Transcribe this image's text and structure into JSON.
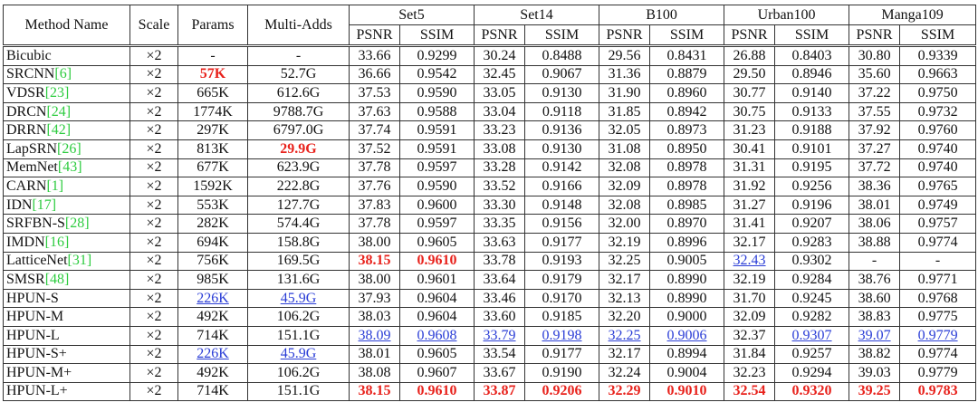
{
  "table": {
    "header": {
      "fixed": [
        "Method Name",
        "Scale",
        "Params",
        "Multi-Adds"
      ],
      "datasets": [
        "Set5",
        "Set14",
        "B100",
        "Urban100",
        "Manga109"
      ],
      "metrics": [
        "PSNR",
        "SSIM"
      ]
    },
    "groups": [
      [
        {
          "method": "Bicubic",
          "cells": [
            "×2",
            "-",
            "-",
            "33.66",
            "0.9299",
            "30.24",
            "0.8488",
            "29.56",
            "0.8431",
            "26.88",
            "0.8403",
            "30.80",
            "0.9339"
          ]
        },
        {
          "method": "SRCNN",
          "ref": "[6]",
          "cells": [
            "×2",
            "57K",
            "52.7G",
            "36.66",
            "0.9542",
            "32.45",
            "0.9067",
            "31.36",
            "0.8879",
            "29.50",
            "0.8946",
            "35.60",
            "0.9663"
          ],
          "red": [
            1
          ]
        },
        {
          "method": "VDSR",
          "ref": "[23]",
          "cells": [
            "×2",
            "665K",
            "612.6G",
            "37.53",
            "0.9590",
            "33.05",
            "0.9130",
            "31.90",
            "0.8960",
            "30.77",
            "0.9140",
            "37.22",
            "0.9750"
          ]
        },
        {
          "method": "DRCN",
          "ref": "[24]",
          "cells": [
            "×2",
            "1774K",
            "9788.7G",
            "37.63",
            "0.9588",
            "33.04",
            "0.9118",
            "31.85",
            "0.8942",
            "30.75",
            "0.9133",
            "37.55",
            "0.9732"
          ]
        },
        {
          "method": "DRRN",
          "ref": "[42]",
          "cells": [
            "×2",
            "297K",
            "6797.0G",
            "37.74",
            "0.9591",
            "33.23",
            "0.9136",
            "32.05",
            "0.8973",
            "31.23",
            "0.9188",
            "37.92",
            "0.9760"
          ]
        },
        {
          "method": "LapSRN",
          "ref": "[26]",
          "cells": [
            "×2",
            "813K",
            "29.9G",
            "37.52",
            "0.9591",
            "33.08",
            "0.9130",
            "31.08",
            "0.8950",
            "30.41",
            "0.9101",
            "37.27",
            "0.9740"
          ],
          "red": [
            2
          ]
        },
        {
          "method": "MemNet",
          "ref": "[43]",
          "cells": [
            "×2",
            "677K",
            "623.9G",
            "37.78",
            "0.9597",
            "33.28",
            "0.9142",
            "32.08",
            "0.8978",
            "31.31",
            "0.9195",
            "37.72",
            "0.9740"
          ]
        },
        {
          "method": "CARN",
          "ref": "[1]",
          "cells": [
            "×2",
            "1592K",
            "222.8G",
            "37.76",
            "0.9590",
            "33.52",
            "0.9166",
            "32.09",
            "0.8978",
            "31.92",
            "0.9256",
            "38.36",
            "0.9765"
          ]
        },
        {
          "method": "IDN",
          "ref": "[17]",
          "cells": [
            "×2",
            "553K",
            "127.7G",
            "37.83",
            "0.9600",
            "33.30",
            "0.9148",
            "32.08",
            "0.8985",
            "31.27",
            "0.9196",
            "38.01",
            "0.9749"
          ]
        },
        {
          "method": "SRFBN-S",
          "ref": "[28]",
          "cells": [
            "×2",
            "282K",
            "574.4G",
            "37.78",
            "0.9597",
            "33.35",
            "0.9156",
            "32.00",
            "0.8970",
            "31.41",
            "0.9207",
            "38.06",
            "0.9757"
          ]
        },
        {
          "method": "IMDN",
          "ref": "[16]",
          "cells": [
            "×2",
            "694K",
            "158.8G",
            "38.00",
            "0.9605",
            "33.63",
            "0.9177",
            "32.19",
            "0.8996",
            "32.17",
            "0.9283",
            "38.88",
            "0.9774"
          ]
        },
        {
          "method": "LatticeNet",
          "ref": "[31]",
          "cells": [
            "×2",
            "756K",
            "169.5G",
            "38.15",
            "0.9610",
            "33.78",
            "0.9193",
            "32.25",
            "0.9005",
            "32.43",
            "0.9302",
            "-",
            "-"
          ],
          "red": [
            3,
            4
          ],
          "blue": [
            9
          ]
        },
        {
          "method": "SMSR",
          "ref": "[48]",
          "cells": [
            "×2",
            "985K",
            "131.6G",
            "38.00",
            "0.9601",
            "33.64",
            "0.9179",
            "32.17",
            "0.8990",
            "32.19",
            "0.9284",
            "38.76",
            "0.9771"
          ]
        }
      ],
      [
        {
          "method": "HPUN-S",
          "cells": [
            "×2",
            "226K",
            "45.9G",
            "37.93",
            "0.9604",
            "33.46",
            "0.9170",
            "32.13",
            "0.8990",
            "31.70",
            "0.9245",
            "38.60",
            "0.9768"
          ],
          "blue": [
            1,
            2
          ]
        },
        {
          "method": "HPUN-M",
          "cells": [
            "×2",
            "492K",
            "106.2G",
            "38.03",
            "0.9604",
            "33.60",
            "0.9185",
            "32.20",
            "0.9000",
            "32.09",
            "0.9282",
            "38.83",
            "0.9775"
          ]
        },
        {
          "method": "HPUN-L",
          "cells": [
            "×2",
            "714K",
            "151.1G",
            "38.09",
            "0.9608",
            "33.79",
            "0.9198",
            "32.25",
            "0.9006",
            "32.37",
            "0.9307",
            "39.07",
            "0.9779"
          ],
          "blue": [
            3,
            4,
            5,
            6,
            7,
            8,
            10,
            11,
            12
          ]
        }
      ],
      [
        {
          "method": "HPUN-S+",
          "cells": [
            "×2",
            "226K",
            "45.9G",
            "38.01",
            "0.9605",
            "33.54",
            "0.9177",
            "32.17",
            "0.8994",
            "31.84",
            "0.9257",
            "38.82",
            "0.9774"
          ],
          "blue": [
            1,
            2
          ]
        },
        {
          "method": "HPUN-M+",
          "cells": [
            "×2",
            "492K",
            "106.2G",
            "38.08",
            "0.9607",
            "33.67",
            "0.9190",
            "32.24",
            "0.9004",
            "32.23",
            "0.9294",
            "39.03",
            "0.9779"
          ]
        },
        {
          "method": "HPUN-L+",
          "cells": [
            "×2",
            "714K",
            "151.1G",
            "38.15",
            "0.9610",
            "33.87",
            "0.9206",
            "32.29",
            "0.9010",
            "32.54",
            "0.9320",
            "39.25",
            "0.9783"
          ],
          "red": [
            3,
            4,
            5,
            6,
            7,
            8,
            9,
            10,
            11,
            12
          ]
        }
      ]
    ]
  }
}
